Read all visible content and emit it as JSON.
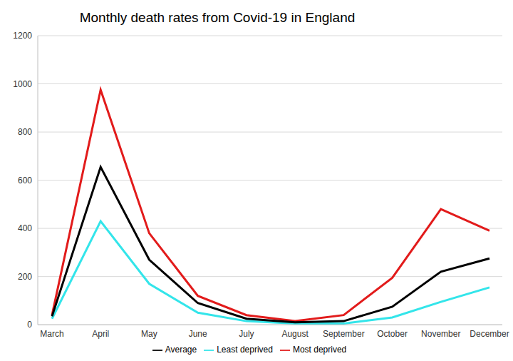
{
  "chart_data": {
    "type": "line",
    "title": "Monthly death rates from Covid-19 in England",
    "categories": [
      "March",
      "April",
      "May",
      "June",
      "July",
      "August",
      "September",
      "October",
      "November",
      "December"
    ],
    "series": [
      {
        "name": "Least deprived",
        "color": "#33e5ea",
        "values": [
          25,
          430,
          170,
          50,
          15,
          5,
          5,
          30,
          95,
          155
        ]
      },
      {
        "name": "Most deprived",
        "color": "#e21b1b",
        "values": [
          40,
          975,
          380,
          120,
          40,
          15,
          40,
          195,
          480,
          390
        ]
      },
      {
        "name": "Average",
        "color": "#000000",
        "values": [
          35,
          655,
          270,
          90,
          25,
          10,
          15,
          75,
          220,
          275
        ]
      }
    ],
    "ylim": [
      0,
      1200
    ],
    "yticks": [
      0,
      200,
      400,
      600,
      800,
      1000,
      1200
    ],
    "grid": true,
    "legend": "bottom"
  }
}
